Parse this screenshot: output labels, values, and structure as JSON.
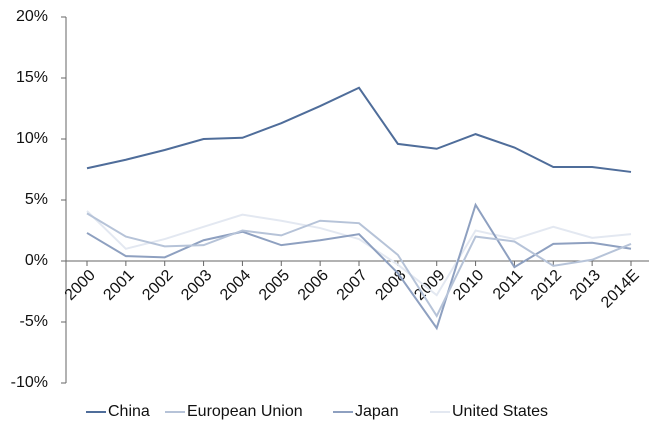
{
  "chart_data": {
    "type": "line",
    "categories": [
      "2000",
      "2001",
      "2002",
      "2003",
      "2004",
      "2005",
      "2006",
      "2007",
      "2008",
      "2009",
      "2010",
      "2011",
      "2012",
      "2013",
      "2014E"
    ],
    "series": [
      {
        "name": "China",
        "color": "#4f6d9a",
        "values": [
          7.6,
          8.3,
          9.1,
          10.0,
          10.1,
          11.3,
          12.7,
          14.2,
          9.6,
          9.2,
          10.4,
          9.3,
          7.7,
          7.7,
          7.3
        ]
      },
      {
        "name": "European Union",
        "color": "#b6c3d8",
        "values": [
          3.9,
          2.0,
          1.2,
          1.3,
          2.5,
          2.1,
          3.3,
          3.1,
          0.5,
          -4.5,
          2.0,
          1.6,
          -0.4,
          0.1,
          1.4
        ]
      },
      {
        "name": "Japan",
        "color": "#8ea0c0",
        "values": [
          2.3,
          0.4,
          0.3,
          1.7,
          2.4,
          1.3,
          1.7,
          2.2,
          -1.0,
          -5.5,
          4.6,
          -0.5,
          1.4,
          1.5,
          1.0
        ]
      },
      {
        "name": "United States",
        "color": "#e3e8f1",
        "values": [
          4.1,
          1.0,
          1.8,
          2.8,
          3.8,
          3.3,
          2.7,
          1.8,
          -0.3,
          -2.8,
          2.5,
          1.8,
          2.8,
          1.9,
          2.2
        ]
      }
    ],
    "ylim": [
      -10,
      20
    ],
    "yticks": [
      {
        "value": -10,
        "label": "-10%"
      },
      {
        "value": -5,
        "label": "-5%"
      },
      {
        "value": 0,
        "label": "0%"
      },
      {
        "value": 5,
        "label": "5%"
      },
      {
        "value": 10,
        "label": "10%"
      },
      {
        "value": 15,
        "label": "15%"
      },
      {
        "value": 20,
        "label": "20%"
      }
    ],
    "legend": "bottom"
  }
}
